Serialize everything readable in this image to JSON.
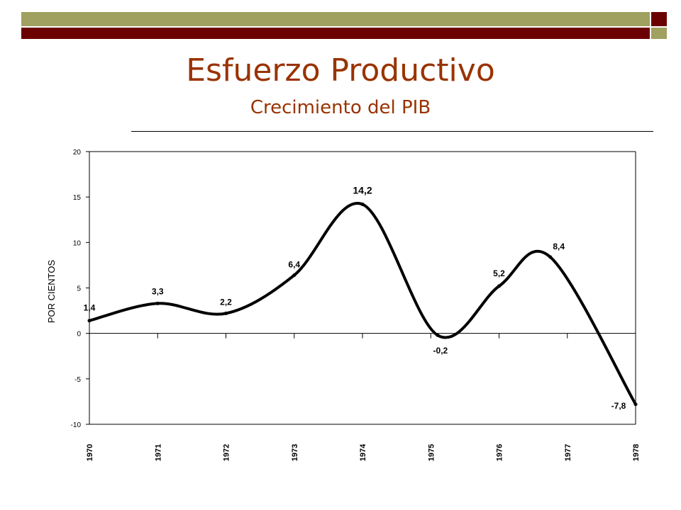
{
  "slide": {
    "title": "Esfuerzo Productivo",
    "subtitle": "Crecimiento del PIB",
    "colors": {
      "title": "#993300",
      "olive": "#A0A060",
      "maroon": "#6B0000",
      "line": "#000000"
    }
  },
  "chart_data": {
    "type": "line",
    "x": [
      1970,
      1971,
      1972,
      1973,
      1974,
      1975,
      1976,
      1977,
      1978
    ],
    "tick_labels": [
      "1970",
      "1971",
      "1972",
      "1973",
      "1974",
      "1975",
      "1976",
      "1977",
      "1978"
    ],
    "points": [
      {
        "x": 1970.0,
        "y": 1.4,
        "label": "1,4"
      },
      {
        "x": 1971.0,
        "y": 3.3,
        "label": "3,3"
      },
      {
        "x": 1972.0,
        "y": 2.2,
        "label": "2,2"
      },
      {
        "x": 1973.0,
        "y": 6.4,
        "label": "6,4"
      },
      {
        "x": 1974.0,
        "y": 14.2,
        "label": "14,2"
      },
      {
        "x": 1975.1,
        "y": -0.2,
        "label": "-0,2"
      },
      {
        "x": 1976.0,
        "y": 5.2,
        "label": "5,2"
      },
      {
        "x": 1976.75,
        "y": 8.4,
        "label": "8,4"
      },
      {
        "x": 1978.0,
        "y": -7.8,
        "label": "-7,8"
      }
    ],
    "ylabel": "POR CIENTOS",
    "xlabel": "",
    "ylim": [
      -10,
      20
    ],
    "y_ticks": [
      -10,
      -5,
      0,
      5,
      10,
      15,
      20
    ],
    "grid": false,
    "legend": "none"
  }
}
